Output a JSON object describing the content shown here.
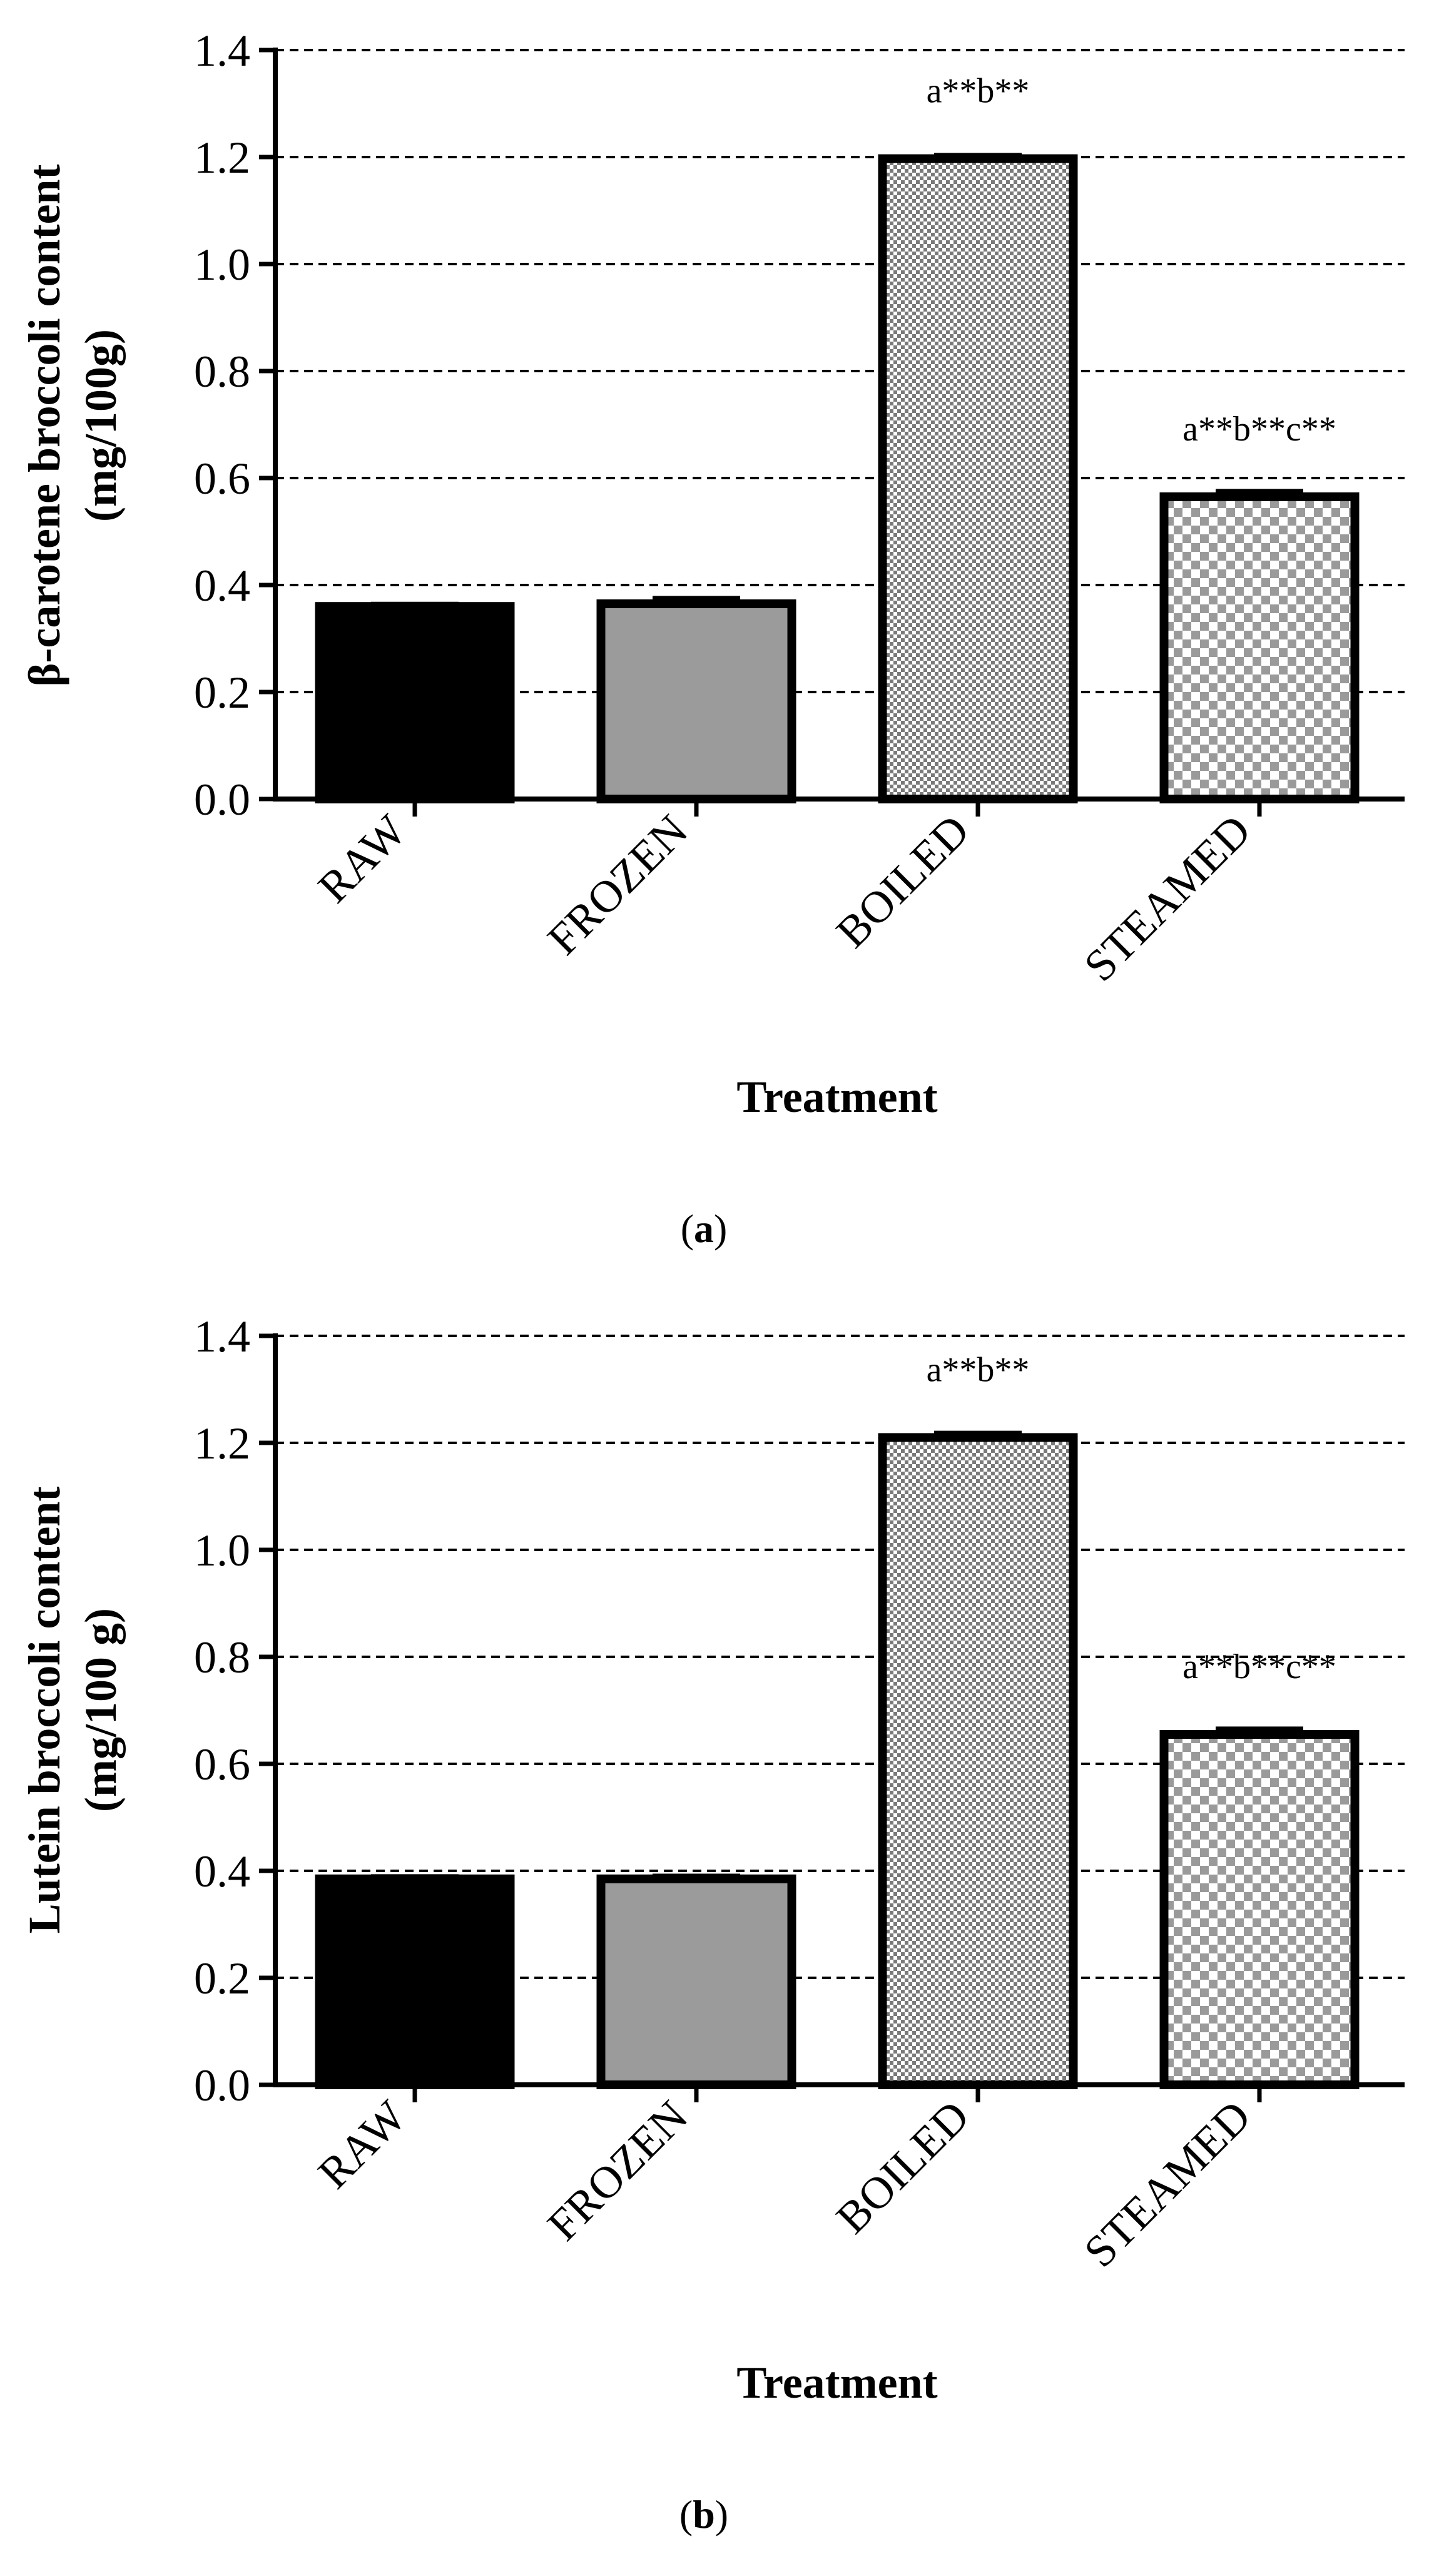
{
  "chart_data": [
    {
      "type": "bar",
      "panel": "a",
      "caption_letter": "a",
      "categories": [
        "RAW",
        "FROZEN",
        "BOILED",
        "STEAMED"
      ],
      "values": [
        0.36,
        0.365,
        1.197,
        0.565
      ],
      "errors": [
        0.004,
        0.01,
        0.006,
        0.01
      ],
      "annotations": [
        "",
        "",
        "a**b**",
        "a**b**c**"
      ],
      "fills": [
        "black",
        "gray",
        "checker-fine",
        "checker-coarse"
      ],
      "ylabel_line1": "β-carotene broccoli content",
      "ylabel_line2": "(mg/100g)",
      "xlabel": "Treatment",
      "ylim": [
        0,
        1.4
      ],
      "yticks": [
        "0.0",
        "0.2",
        "0.4",
        "0.6",
        "0.8",
        "1.0",
        "1.2",
        "1.4"
      ],
      "grid": "dashed horizontal"
    },
    {
      "type": "bar",
      "panel": "b",
      "caption_letter": "b",
      "categories": [
        "RAW",
        "FROZEN",
        "BOILED",
        "STEAMED"
      ],
      "values": [
        0.385,
        0.385,
        1.21,
        0.655
      ],
      "errors": [
        0.004,
        0.005,
        0.008,
        0.01
      ],
      "annotations": [
        "",
        "",
        "a**b**",
        "a**b**c**"
      ],
      "fills": [
        "black",
        "gray",
        "checker-fine",
        "checker-coarse"
      ],
      "ylabel_line1": "Lutein broccoli content",
      "ylabel_line2": "(mg/100 g)",
      "xlabel": "Treatment",
      "ylim": [
        0,
        1.4
      ],
      "yticks": [
        "0.0",
        "0.2",
        "0.4",
        "0.6",
        "0.8",
        "1.0",
        "1.2",
        "1.4"
      ],
      "grid": "dashed horizontal"
    }
  ]
}
